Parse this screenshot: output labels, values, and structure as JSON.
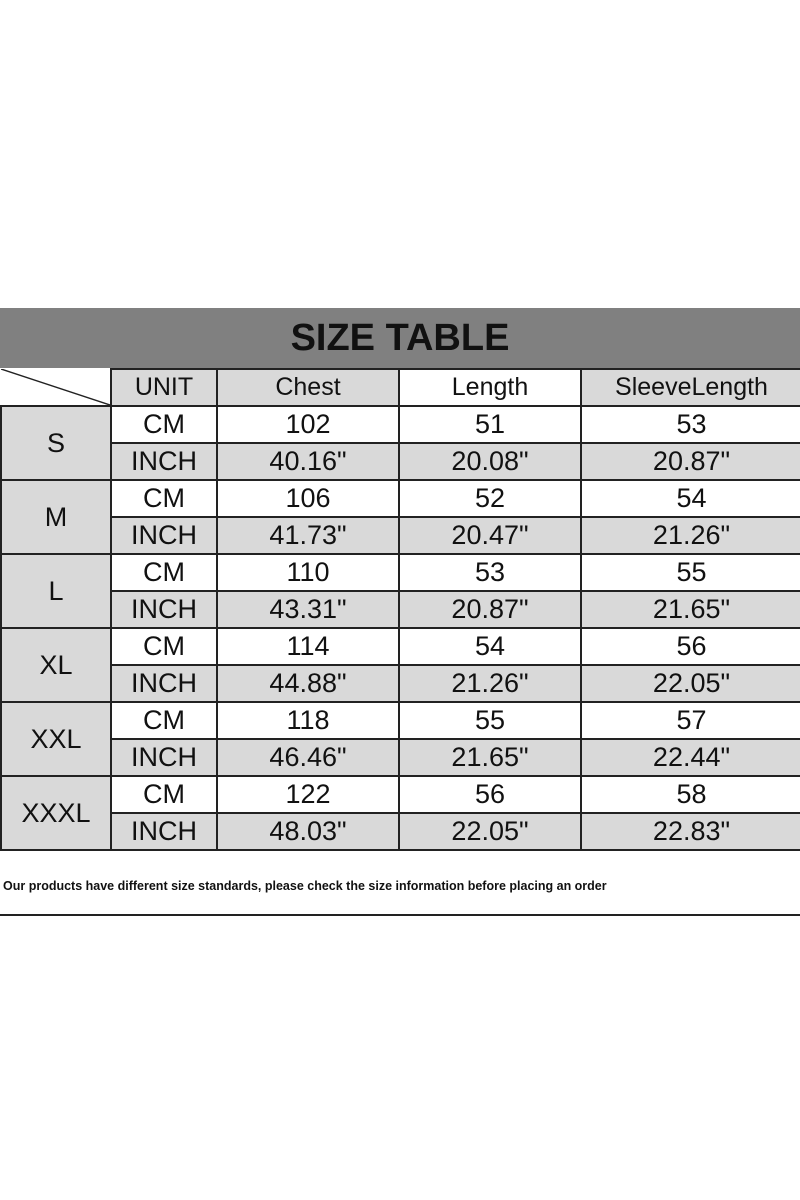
{
  "title": "SIZE TABLE",
  "headers": [
    "UNIT",
    "Chest",
    "Length",
    "SleeveLength"
  ],
  "rows": [
    {
      "size": "S",
      "cm": [
        "CM",
        "102",
        "51",
        "53"
      ],
      "inch": [
        "INCH",
        "40.16\"",
        "20.08\"",
        "20.87\""
      ]
    },
    {
      "size": "M",
      "cm": [
        "CM",
        "106",
        "52",
        "54"
      ],
      "inch": [
        "INCH",
        "41.73\"",
        "20.47\"",
        "21.26\""
      ]
    },
    {
      "size": "L",
      "cm": [
        "CM",
        "110",
        "53",
        "55"
      ],
      "inch": [
        "INCH",
        "43.31\"",
        "20.87\"",
        "21.65\""
      ]
    },
    {
      "size": "XL",
      "cm": [
        "CM",
        "114",
        "54",
        "56"
      ],
      "inch": [
        "INCH",
        "44.88\"",
        "21.26\"",
        "22.05\""
      ]
    },
    {
      "size": "XXL",
      "cm": [
        "CM",
        "118",
        "55",
        "57"
      ],
      "inch": [
        "INCH",
        "46.46\"",
        "21.65\"",
        "22.44\""
      ]
    },
    {
      "size": "XXXL",
      "cm": [
        "CM",
        "122",
        "56",
        "58"
      ],
      "inch": [
        "INCH",
        "48.03\"",
        "22.05\"",
        "22.83\""
      ]
    }
  ],
  "note": "Our products have different size standards, please check the size information before placing an order",
  "colors": {
    "title_bg": "#808080",
    "cell_gray": "#d9d9d9"
  }
}
